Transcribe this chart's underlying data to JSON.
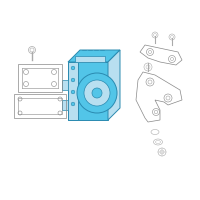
{
  "background_color": "#ffffff",
  "border_color": "#d0d0d0",
  "main_unit_color": "#52c5e8",
  "main_unit_outline": "#2a8ab0",
  "secondary_color": "#b8dff0",
  "outline_color": "#888888",
  "screw_color": "#aaaaaa",
  "figsize": [
    2.0,
    2.0
  ],
  "dpi": 100
}
